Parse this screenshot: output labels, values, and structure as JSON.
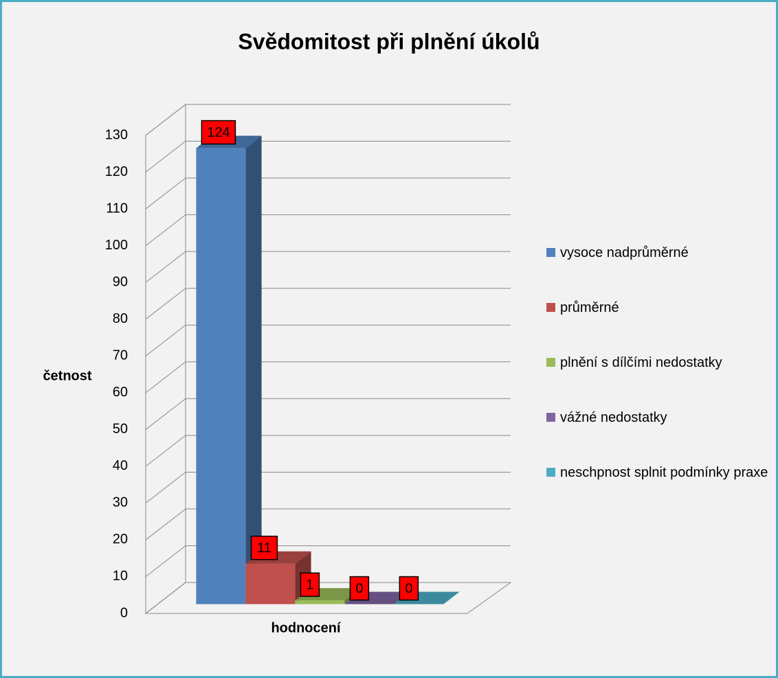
{
  "chart_data": {
    "type": "bar3d",
    "title": "Svědomitost při plnění úkolů",
    "x_label": "hodnocení",
    "y_label": "četnost",
    "categories": [
      null
    ],
    "series": [
      {
        "name": "vysoce nadprůměrné",
        "color": "#4f81bd",
        "values": [
          124
        ]
      },
      {
        "name": "průměrné",
        "color": "#c0504d",
        "values": [
          11
        ]
      },
      {
        "name": "plnění s dílčími nedostatky",
        "color": "#9bbb59",
        "values": [
          1
        ]
      },
      {
        "name": "vážné nedostatky",
        "color": "#8064a2",
        "values": [
          0
        ]
      },
      {
        "name": "neschpnost splnit podmínky praxe",
        "color": "#4bacc6",
        "values": [
          0
        ]
      }
    ],
    "ylim": [
      0,
      130
    ],
    "yticks": [
      0,
      10,
      20,
      30,
      40,
      50,
      60,
      70,
      80,
      90,
      100,
      110,
      120,
      130
    ],
    "grid": true,
    "legend": "right"
  }
}
